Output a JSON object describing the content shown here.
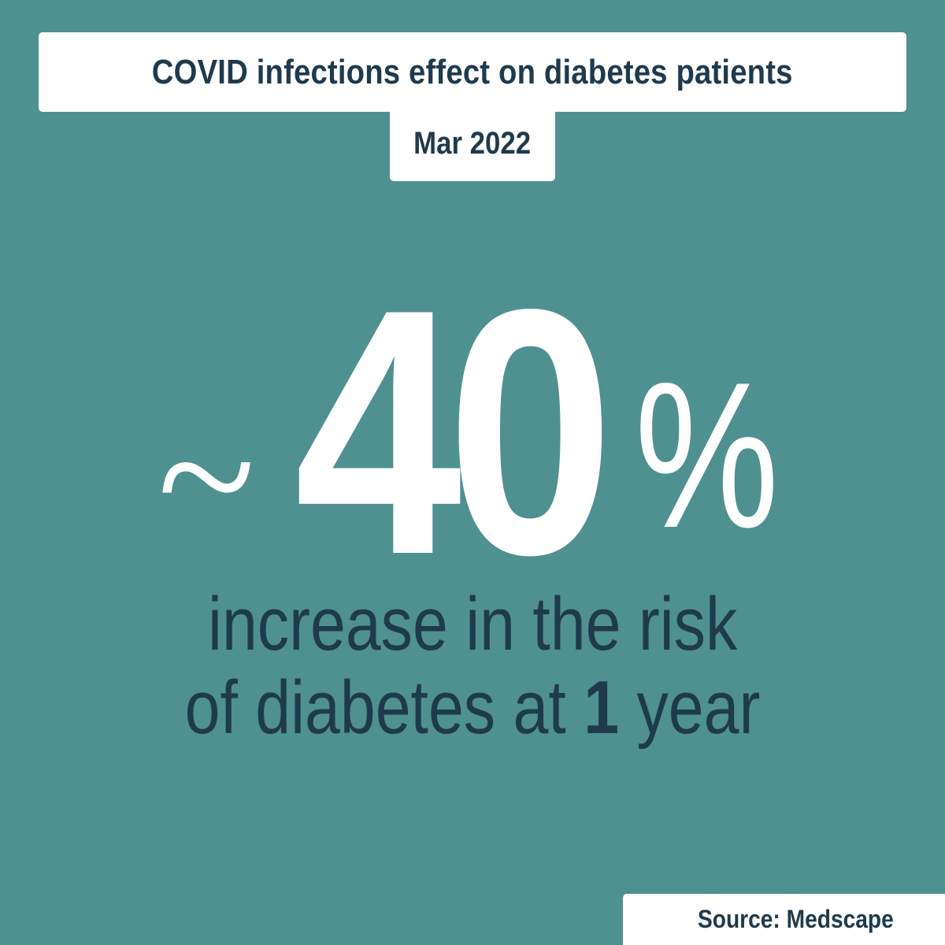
{
  "header": {
    "title": "COVID infections effect on diabetes patients",
    "date": "Mar 2022"
  },
  "stat": {
    "approx_symbol": "~",
    "value": "40",
    "unit": "%",
    "description_line1": "increase in the risk",
    "description_line2_before": "of diabetes at ",
    "description_line2_bold": "1",
    "description_line2_after": " year"
  },
  "footer": {
    "source": "Source: Medscape"
  },
  "colors": {
    "background": "#4e9190",
    "box": "#ffffff",
    "dark_text": "#1f3a4d",
    "stat_text": "#ffffff"
  }
}
